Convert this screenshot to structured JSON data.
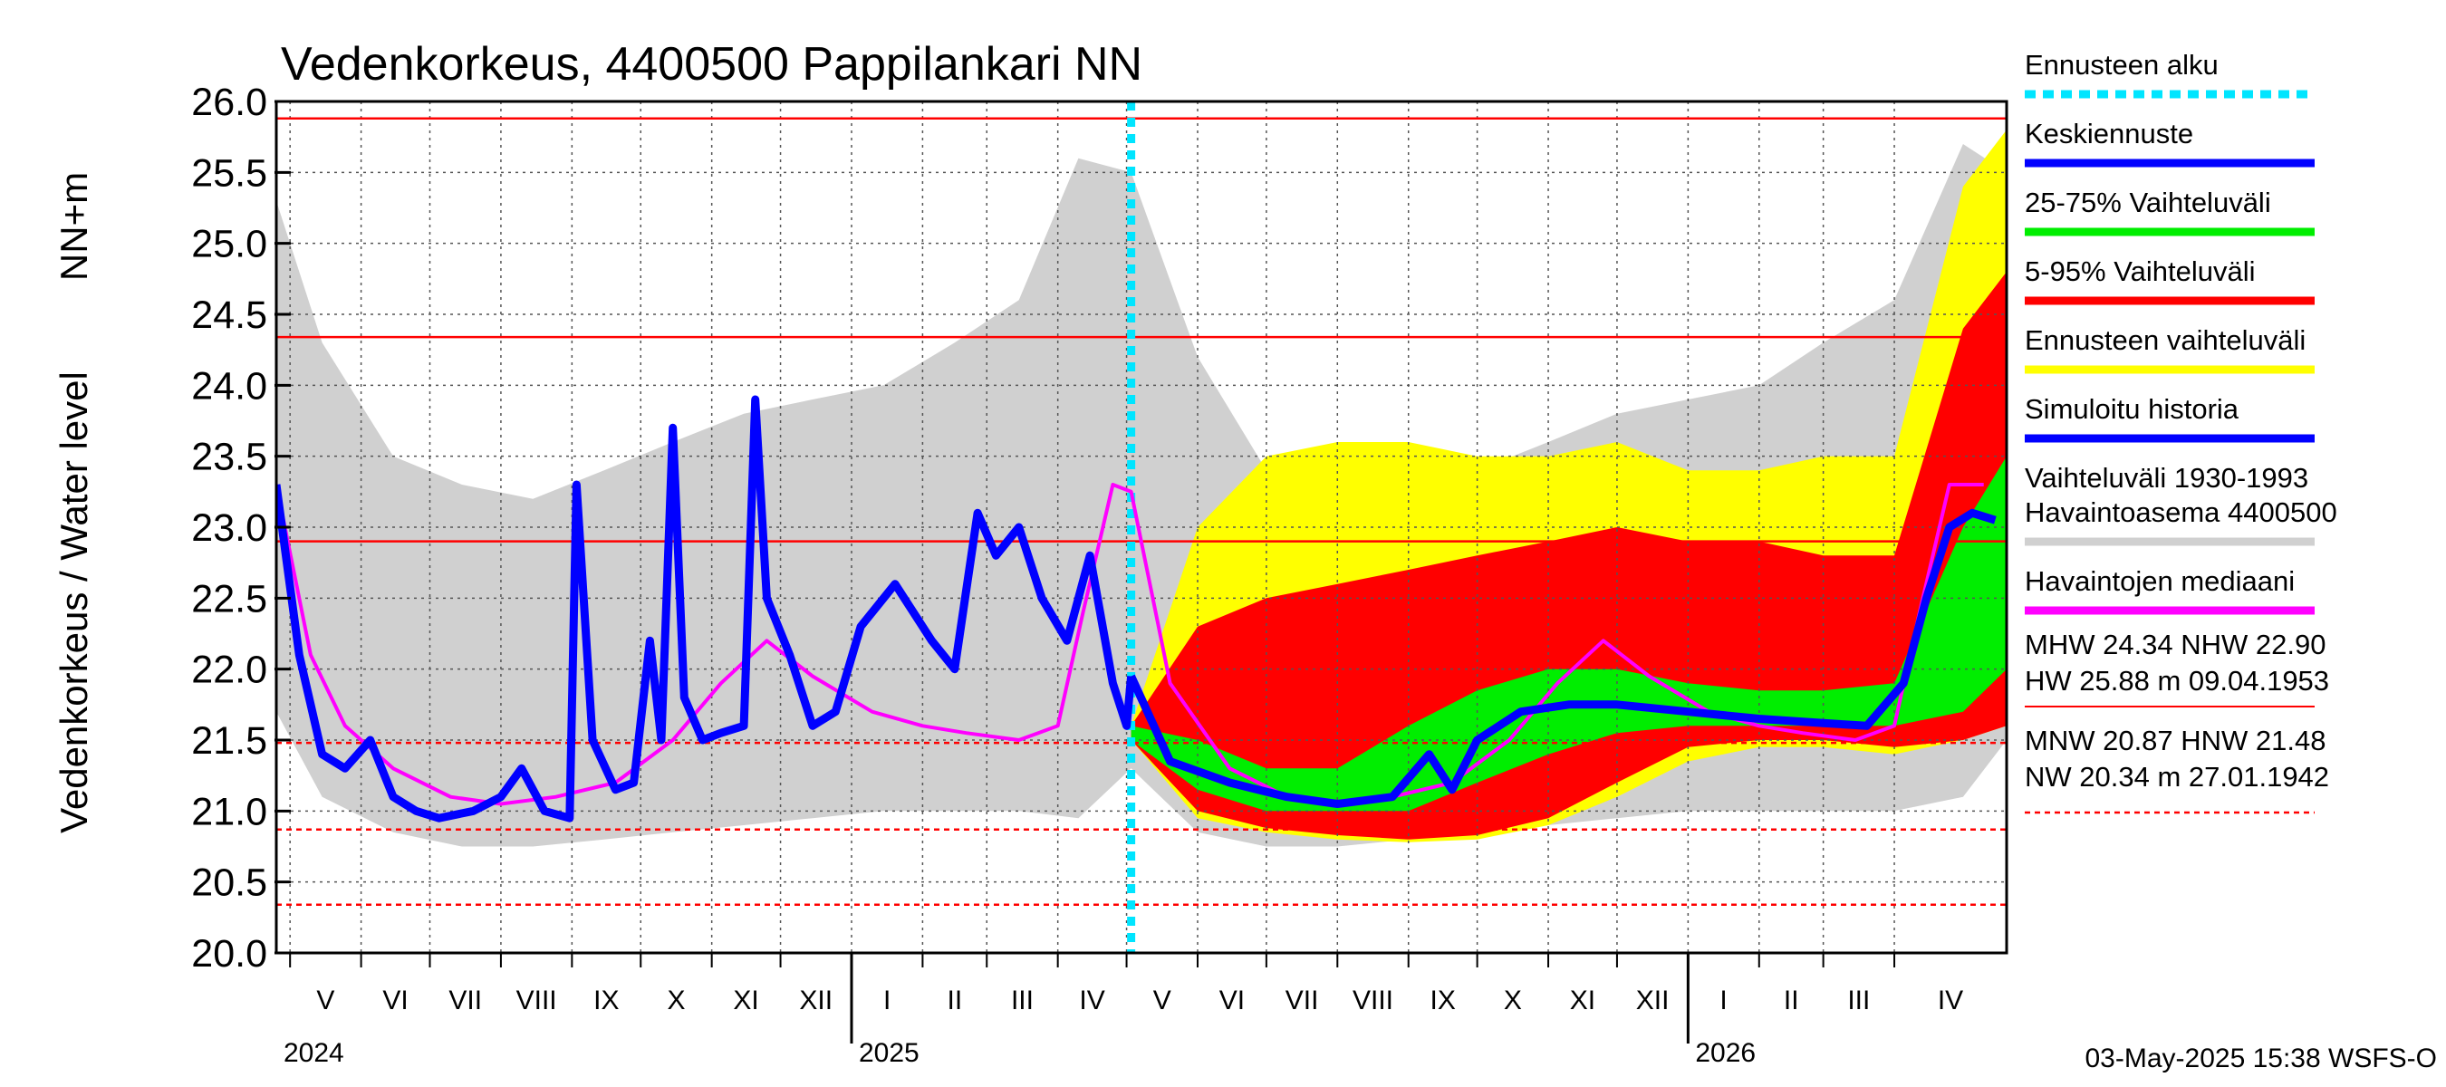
{
  "chart_data": {
    "type": "area",
    "title": "Vedenkorkeus, 4400500 Pappilankari NN",
    "ylabel_left": "Vedenkorkeus / Water level",
    "ylabel_unit": "NN+m",
    "ylim": [
      20.0,
      26.0
    ],
    "yticks": [
      "20.0",
      "20.5",
      "21.0",
      "21.5",
      "22.0",
      "22.5",
      "23.0",
      "23.5",
      "24.0",
      "24.5",
      "25.0",
      "25.5",
      "26.0"
    ],
    "xlim": [
      "2024-04-25",
      "2026-05-20"
    ],
    "months": [
      {
        "label": "V",
        "date": "2024-05-01"
      },
      {
        "label": "VI",
        "date": "2024-06-01"
      },
      {
        "label": "VII",
        "date": "2024-07-01"
      },
      {
        "label": "VIII",
        "date": "2024-08-01"
      },
      {
        "label": "IX",
        "date": "2024-09-01"
      },
      {
        "label": "X",
        "date": "2024-10-01"
      },
      {
        "label": "XI",
        "date": "2024-11-01"
      },
      {
        "label": "XII",
        "date": "2024-12-01"
      },
      {
        "label": "I",
        "date": "2025-01-01"
      },
      {
        "label": "II",
        "date": "2025-02-01"
      },
      {
        "label": "III",
        "date": "2025-03-01"
      },
      {
        "label": "IV",
        "date": "2025-04-01"
      },
      {
        "label": "V",
        "date": "2025-05-01"
      },
      {
        "label": "VI",
        "date": "2025-06-01"
      },
      {
        "label": "VII",
        "date": "2025-07-01"
      },
      {
        "label": "VIII",
        "date": "2025-08-01"
      },
      {
        "label": "IX",
        "date": "2025-09-01"
      },
      {
        "label": "X",
        "date": "2025-10-01"
      },
      {
        "label": "XI",
        "date": "2025-11-01"
      },
      {
        "label": "XII",
        "date": "2025-12-01"
      },
      {
        "label": "I",
        "date": "2026-01-01"
      },
      {
        "label": "II",
        "date": "2026-02-01"
      },
      {
        "label": "III",
        "date": "2026-03-01"
      },
      {
        "label": "IV",
        "date": "2026-04-01"
      }
    ],
    "years": [
      {
        "label": "2024",
        "date": "2024-04-25"
      },
      {
        "label": "2025",
        "date": "2025-01-01"
      },
      {
        "label": "2026",
        "date": "2026-01-01"
      }
    ],
    "forecast_start": "2025-05-03",
    "reference_lines": [
      {
        "name": "HW",
        "value": 25.88,
        "style": "solid"
      },
      {
        "name": "MHW",
        "value": 24.34,
        "style": "solid"
      },
      {
        "name": "NHW",
        "value": 22.9,
        "style": "solid"
      },
      {
        "name": "HNW",
        "value": 21.48,
        "style": "dashed"
      },
      {
        "name": "MNW",
        "value": 20.87,
        "style": "dashed"
      },
      {
        "name": "NW",
        "value": 20.34,
        "style": "dashed"
      }
    ],
    "series": [
      {
        "name": "Vaihteluväli 1930-1993 Havaintoasema 4400500",
        "kind": "band",
        "color": "#d0d0d0",
        "x": [
          "2024-04-25",
          "2024-05-15",
          "2024-06-15",
          "2024-07-15",
          "2024-08-15",
          "2024-09-15",
          "2024-10-15",
          "2024-11-15",
          "2024-12-15",
          "2025-01-15",
          "2025-02-15",
          "2025-03-15",
          "2025-04-10",
          "2025-05-03",
          "2025-06-01",
          "2025-07-01",
          "2025-08-01",
          "2025-09-01",
          "2025-10-01",
          "2025-11-01",
          "2025-12-01",
          "2026-01-01",
          "2026-02-01",
          "2026-03-01",
          "2026-04-01",
          "2026-05-01",
          "2026-05-20"
        ],
        "lower": [
          21.7,
          21.1,
          20.85,
          20.75,
          20.75,
          20.8,
          20.85,
          20.9,
          20.95,
          21.0,
          21.0,
          21.0,
          20.95,
          21.3,
          20.85,
          20.75,
          20.75,
          20.8,
          20.85,
          20.9,
          20.95,
          21.0,
          21.0,
          21.0,
          21.0,
          21.1,
          21.5
        ],
        "upper": [
          25.3,
          24.3,
          23.5,
          23.3,
          23.2,
          23.4,
          23.6,
          23.8,
          23.9,
          24.0,
          24.3,
          24.6,
          25.6,
          25.5,
          24.2,
          23.4,
          23.3,
          23.2,
          23.4,
          23.6,
          23.8,
          23.9,
          24.0,
          24.3,
          24.6,
          25.7,
          25.5
        ]
      },
      {
        "name": "Ennusteen vaihteluväli",
        "kind": "band",
        "color": "#ffff00",
        "x": [
          "2025-05-03",
          "2025-06-01",
          "2025-07-01",
          "2025-08-01",
          "2025-09-01",
          "2025-10-01",
          "2025-11-01",
          "2025-12-01",
          "2026-01-01",
          "2026-02-01",
          "2026-03-01",
          "2026-04-01",
          "2026-05-01",
          "2026-05-20"
        ],
        "lower": [
          21.5,
          20.95,
          20.85,
          20.8,
          20.78,
          20.8,
          20.9,
          21.1,
          21.35,
          21.45,
          21.45,
          21.4,
          21.5,
          21.6
        ],
        "upper": [
          21.6,
          23.0,
          23.5,
          23.6,
          23.6,
          23.5,
          23.5,
          23.6,
          23.4,
          23.4,
          23.5,
          23.5,
          25.4,
          25.8
        ]
      },
      {
        "name": "5-95% Vaihteluväli",
        "kind": "band",
        "color": "#ff0000",
        "x": [
          "2025-05-03",
          "2025-06-01",
          "2025-07-01",
          "2025-08-01",
          "2025-09-01",
          "2025-10-01",
          "2025-11-01",
          "2025-12-01",
          "2026-01-01",
          "2026-02-01",
          "2026-03-01",
          "2026-04-01",
          "2026-05-01",
          "2026-05-20"
        ],
        "lower": [
          21.5,
          21.0,
          20.88,
          20.83,
          20.8,
          20.83,
          20.95,
          21.2,
          21.45,
          21.5,
          21.5,
          21.45,
          21.5,
          21.6
        ],
        "upper": [
          21.6,
          22.3,
          22.5,
          22.6,
          22.7,
          22.8,
          22.9,
          23.0,
          22.9,
          22.9,
          22.8,
          22.8,
          24.4,
          24.8
        ]
      },
      {
        "name": "25-75% Vaihteluväli",
        "kind": "band",
        "color": "#00ee00",
        "x": [
          "2025-05-03",
          "2025-06-01",
          "2025-07-01",
          "2025-08-01",
          "2025-09-01",
          "2025-10-01",
          "2025-11-01",
          "2025-12-01",
          "2026-01-01",
          "2026-02-01",
          "2026-03-01",
          "2026-04-01",
          "2026-05-01",
          "2026-05-20"
        ],
        "lower": [
          21.5,
          21.15,
          21.0,
          21.0,
          21.0,
          21.2,
          21.4,
          21.55,
          21.6,
          21.6,
          21.6,
          21.6,
          21.7,
          22.0
        ],
        "upper": [
          21.6,
          21.5,
          21.3,
          21.3,
          21.6,
          21.85,
          22.0,
          22.0,
          21.9,
          21.85,
          21.85,
          21.9,
          23.0,
          23.5
        ]
      },
      {
        "name": "Havaintojen mediaani",
        "kind": "line",
        "color": "#ff00ff",
        "x": [
          "2024-04-25",
          "2024-05-10",
          "2024-05-25",
          "2024-06-15",
          "2024-07-10",
          "2024-08-01",
          "2024-08-25",
          "2024-09-20",
          "2024-10-15",
          "2024-11-05",
          "2024-11-25",
          "2024-12-15",
          "2025-01-10",
          "2025-02-01",
          "2025-02-20",
          "2025-03-15",
          "2025-04-01",
          "2025-04-12",
          "2025-04-25",
          "2025-05-03",
          "2025-05-20",
          "2025-06-15",
          "2025-07-10",
          "2025-08-01",
          "2025-08-25",
          "2025-09-20",
          "2025-10-15",
          "2025-11-05",
          "2025-11-25",
          "2025-12-15",
          "2026-01-10",
          "2026-02-01",
          "2026-02-20",
          "2026-03-15",
          "2026-04-01",
          "2026-04-12",
          "2026-04-25",
          "2026-05-10"
        ],
        "y": [
          23.3,
          22.1,
          21.6,
          21.3,
          21.1,
          21.05,
          21.1,
          21.2,
          21.5,
          21.9,
          22.2,
          21.95,
          21.7,
          21.6,
          21.55,
          21.5,
          21.6,
          22.4,
          23.3,
          23.25,
          21.9,
          21.3,
          21.1,
          21.05,
          21.1,
          21.2,
          21.5,
          21.9,
          22.2,
          21.95,
          21.7,
          21.6,
          21.55,
          21.5,
          21.6,
          22.4,
          23.3,
          23.3
        ]
      },
      {
        "name": "Simuloitu historia",
        "kind": "line",
        "color": "#0000ff",
        "x": [
          "2024-04-25",
          "2024-05-05",
          "2024-05-15",
          "2024-05-25",
          "2024-06-05",
          "2024-06-15",
          "2024-06-25",
          "2024-07-05",
          "2024-07-20",
          "2024-08-01",
          "2024-08-10",
          "2024-08-20",
          "2024-08-31",
          "2024-09-03",
          "2024-09-10",
          "2024-09-20",
          "2024-09-28",
          "2024-10-05",
          "2024-10-10",
          "2024-10-15",
          "2024-10-20",
          "2024-10-28",
          "2024-11-05",
          "2024-11-15",
          "2024-11-20",
          "2024-11-25",
          "2024-12-05",
          "2024-12-15",
          "2024-12-25",
          "2025-01-05",
          "2025-01-20",
          "2025-02-05",
          "2025-02-15",
          "2025-02-25",
          "2025-03-05",
          "2025-03-15",
          "2025-03-25",
          "2025-04-05",
          "2025-04-15",
          "2025-04-25",
          "2025-05-01",
          "2025-05-03"
        ],
        "y": [
          23.3,
          22.1,
          21.4,
          21.3,
          21.5,
          21.1,
          21.0,
          20.95,
          21.0,
          21.1,
          21.3,
          21.0,
          20.95,
          23.3,
          21.5,
          21.15,
          21.2,
          22.2,
          21.5,
          23.7,
          21.8,
          21.5,
          21.55,
          21.6,
          23.9,
          22.5,
          22.1,
          21.6,
          21.7,
          22.3,
          22.6,
          22.2,
          22.0,
          23.1,
          22.8,
          23.0,
          22.5,
          22.2,
          22.8,
          21.9,
          21.6,
          21.95
        ]
      },
      {
        "name": "Keskiennuste",
        "kind": "line",
        "color": "#0000ff",
        "x": [
          "2025-05-03",
          "2025-05-20",
          "2025-06-15",
          "2025-07-10",
          "2025-08-01",
          "2025-08-25",
          "2025-09-10",
          "2025-09-20",
          "2025-10-01",
          "2025-10-20",
          "2025-11-10",
          "2025-12-01",
          "2026-01-01",
          "2026-02-01",
          "2026-03-01",
          "2026-03-20",
          "2026-04-05",
          "2026-04-15",
          "2026-04-25",
          "2026-05-05",
          "2026-05-15"
        ],
        "y": [
          21.95,
          21.35,
          21.2,
          21.1,
          21.05,
          21.1,
          21.4,
          21.15,
          21.5,
          21.7,
          21.75,
          21.75,
          21.7,
          21.65,
          21.62,
          21.6,
          21.9,
          22.5,
          23.0,
          23.1,
          23.05
        ]
      }
    ],
    "legend": [
      {
        "label": "Ennusteen alku",
        "color": "#00e5ff",
        "style": "dotted"
      },
      {
        "label": "Keskiennuste",
        "color": "#0000ff",
        "style": "solid"
      },
      {
        "label": "25-75% Vaihteluväli",
        "color": "#00ee00",
        "style": "solid"
      },
      {
        "label": "5-95% Vaihteluväli",
        "color": "#ff0000",
        "style": "solid"
      },
      {
        "label": "Ennusteen vaihteluväli",
        "color": "#ffff00",
        "style": "solid"
      },
      {
        "label": "Simuloitu historia",
        "color": "#0000ff",
        "style": "solid"
      },
      {
        "label": "Vaihteluväli 1930-1993\n Havaintoasema 4400500",
        "color": "#d0d0d0",
        "style": "solid"
      },
      {
        "label": "Havaintojen mediaani",
        "color": "#ff00ff",
        "style": "solid"
      }
    ],
    "stats_high": {
      "line1": "MHW  24.34 NHW  22.90",
      "line2": "HW  25.88 m 09.04.1953"
    },
    "stats_low": {
      "line1": "MNW  20.87 HNW  21.48",
      "line2": "NW  20.34 m 27.01.1942"
    },
    "footer": "03-May-2025 15:38 WSFS-O"
  }
}
